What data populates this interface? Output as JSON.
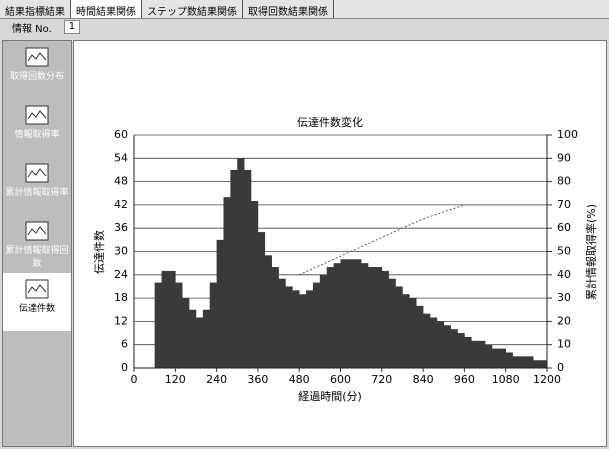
{
  "tabs": [
    "結果指標結果",
    "時間結果関係",
    "ステップ数結果関係",
    "取得回数結果関係"
  ],
  "info": {
    "label": "情報 No.",
    "value": "1"
  },
  "sidebar": [
    "取得回数分布",
    "情報取得率",
    "累計情報取得率",
    "累計情報取得回数",
    "伝達件数"
  ],
  "chart_data": {
    "type": "histogram",
    "title": "伝達件数変化",
    "xlabel": "経過時間(分)",
    "ylabel": "伝達件数",
    "y2label": "累計情報取得率(%)",
    "bins": [
      60,
      80,
      100,
      120,
      140,
      160,
      180,
      200,
      220,
      240,
      260,
      280,
      300,
      320,
      340,
      360,
      380,
      400,
      420,
      440,
      460,
      480,
      500,
      520,
      540,
      560,
      580,
      600,
      620,
      640,
      660,
      680,
      700,
      720,
      740,
      760,
      780,
      800,
      820,
      840,
      860,
      880,
      900,
      920,
      940,
      960,
      980,
      1000,
      1020,
      1040,
      1060,
      1080,
      1100,
      1120,
      1140,
      1160,
      1180,
      1200
    ],
    "values": [
      22,
      25,
      25,
      22,
      18,
      15,
      13,
      15,
      22,
      33,
      44,
      51,
      54,
      51,
      43,
      35,
      29,
      26,
      23,
      21,
      20,
      19,
      20,
      22,
      24,
      26,
      27,
      28,
      28,
      28,
      27,
      26,
      26,
      25,
      23,
      21,
      19,
      18,
      16,
      14,
      13,
      12,
      11,
      10,
      9,
      8,
      7,
      7,
      6,
      5,
      5,
      4,
      3,
      3,
      3,
      2,
      2
    ],
    "color": "#3a3a3a",
    "line": {
      "x": [
        480,
        540,
        600,
        660,
        720,
        780,
        840,
        900,
        960,
        1020,
        1080,
        1140,
        1200
      ],
      "values": [
        40,
        44,
        48,
        52,
        56,
        60,
        64,
        67,
        70,
        70,
        70,
        70,
        70
      ],
      "axis": "y2",
      "color": "#555555"
    },
    "xlim": [
      0,
      1200
    ],
    "xticks": [
      0,
      120,
      240,
      360,
      480,
      600,
      720,
      840,
      960,
      1080,
      1200
    ],
    "ylim": [
      0,
      60
    ],
    "yticks": [
      0,
      6,
      12,
      18,
      24,
      30,
      36,
      42,
      48,
      54,
      60
    ],
    "y2lim": [
      0,
      100
    ],
    "y2ticks": [
      0,
      10,
      20,
      30,
      40,
      50,
      60,
      70,
      80,
      90,
      100
    ],
    "grid": true
  }
}
